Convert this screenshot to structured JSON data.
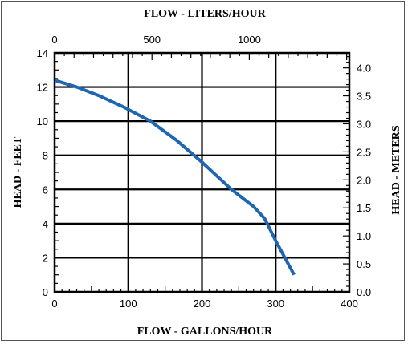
{
  "chart_data": {
    "type": "line",
    "title_top": "FLOW - LITERS/HOUR",
    "xlabel": "FLOW - GALLONS/HOUR",
    "ylabel_left": "HEAD - FEET",
    "ylabel_right": "HEAD - METERS",
    "x_range": [
      0,
      400
    ],
    "y_range": [
      0,
      14
    ],
    "x_ticks": [
      "0",
      "100",
      "200",
      "300",
      "400"
    ],
    "y_ticks": [
      "0",
      "2",
      "4",
      "6",
      "8",
      "10",
      "12",
      "14"
    ],
    "top_ticks": [
      "0",
      "500",
      "1000"
    ],
    "top_tick_values": [
      0,
      500,
      1000
    ],
    "top_range": [
      0,
      1514
    ],
    "right_ticks": [
      "0.0",
      "0.5",
      "1.0",
      "1.5",
      "2.0",
      "2.5",
      "3.0",
      "3.5",
      "4.0"
    ],
    "right_tick_values": [
      0,
      0.5,
      1.0,
      1.5,
      2.0,
      2.5,
      3.0,
      3.5,
      4.0
    ],
    "right_range": [
      0,
      4.267
    ],
    "grid": true,
    "series": [
      {
        "color": "#1f66b0",
        "x": [
          0,
          30,
          60,
          95,
          130,
          165,
          200,
          240,
          270,
          285,
          300,
          325
        ],
        "y": [
          12.4,
          12.0,
          11.5,
          10.8,
          10.0,
          8.9,
          7.6,
          6.0,
          5.0,
          4.3,
          3.0,
          1.0
        ]
      }
    ]
  }
}
